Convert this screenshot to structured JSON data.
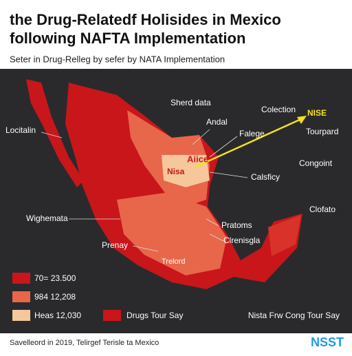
{
  "header": {
    "title_lines": [
      "the Drug-Relatedf Holisides in Mexico",
      "following NAFTA Implementation"
    ],
    "subtitle": "Seter in Drug-Relleg by sefer by NATA Implementation"
  },
  "map": {
    "labels": [
      "Sherd data",
      "Colection",
      "NISE",
      "Locitalin",
      "Andal",
      "Falege",
      "Tourpard",
      "Congoint",
      "Calsficy",
      "Wighemata",
      "Clofato",
      "Pratoms",
      "Clrenisgla",
      "Prenay"
    ],
    "inner_labels": [
      "Aiice",
      "Nisa",
      "Trelord"
    ]
  },
  "legend": {
    "items": [
      "70= 23.500",
      "984 12,208",
      "Heas 12,030",
      "Drugs Tour Say"
    ],
    "note": "Nista Frw Cong Tour Say"
  },
  "footer": {
    "source": "Savelleord in 2019, Telirgef Terisle ta Mexico",
    "logo": "NSST"
  }
}
